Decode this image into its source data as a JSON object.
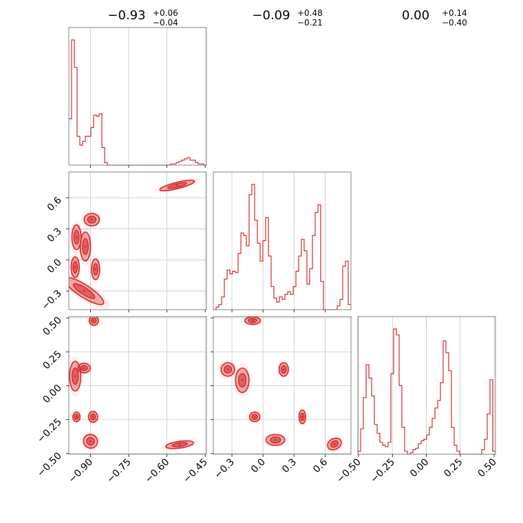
{
  "figure": {
    "type": "corner-plot",
    "color": "#d62728",
    "grid": true
  },
  "params": [
    {
      "index": 0,
      "title_value": "−0.93",
      "title_plus": "+0.06",
      "title_minus": "−0.04"
    },
    {
      "index": 1,
      "title_value": "−0.09",
      "title_plus": "+0.48",
      "title_minus": "−0.21"
    },
    {
      "index": 2,
      "title_value": "0.00",
      "title_plus": "+0.14",
      "title_minus": "−0.40"
    }
  ],
  "chart_data": [
    {
      "type": "histogram",
      "panel": "hist-p0",
      "xlim": [
        -0.985,
        -0.445
      ],
      "xticks": [
        -0.9,
        -0.75,
        -0.6,
        -0.45
      ],
      "x_tick_labels": [
        "−0.90",
        "−0.75",
        "−0.60",
        "−0.45"
      ],
      "show_tick_labels": false,
      "bin_edges_range": [
        -0.985,
        -0.445
      ],
      "bins": 50,
      "values": [
        0.37,
        1.0,
        0.78,
        0.23,
        0.16,
        0.19,
        0.23,
        0.23,
        0.3,
        0.4,
        0.39,
        0.41,
        0.14,
        0.02,
        0.0,
        0.0,
        0.0,
        0.0,
        0.0,
        0.0,
        0.0,
        0.0,
        0.0,
        0.0,
        0.0,
        0.0,
        0.0,
        0.0,
        0.0,
        0.0,
        0.0,
        0.0,
        0.0,
        0.0,
        0.0,
        0.0,
        0.0,
        0.01,
        0.01,
        0.02,
        0.03,
        0.04,
        0.05,
        0.06,
        0.04,
        0.04,
        0.02,
        0.01,
        0.01,
        0.0
      ]
    },
    {
      "type": "histogram",
      "panel": "hist-p1",
      "xlim": [
        -0.48,
        0.85
      ],
      "xticks": [
        -0.3,
        0.0,
        0.3,
        0.6
      ],
      "x_tick_labels": [
        "−0.3",
        "0.0",
        "0.3",
        "0.6"
      ],
      "show_tick_labels": false,
      "bin_edges_range": [
        -0.48,
        0.85
      ],
      "bins": 50,
      "values": [
        0.0,
        0.02,
        0.04,
        0.1,
        0.24,
        0.31,
        0.28,
        0.3,
        0.29,
        0.44,
        0.6,
        0.58,
        0.5,
        0.9,
        0.98,
        0.7,
        0.52,
        0.38,
        0.54,
        0.72,
        0.42,
        0.18,
        0.09,
        0.06,
        0.1,
        0.08,
        0.12,
        0.14,
        0.12,
        0.18,
        0.3,
        0.42,
        0.55,
        0.46,
        0.2,
        0.32,
        0.58,
        0.76,
        0.82,
        0.22,
        0.0,
        0.0,
        0.0,
        0.0,
        0.0,
        0.03,
        0.08,
        0.34,
        0.38,
        0.04
      ]
    },
    {
      "type": "histogram",
      "panel": "hist-p2",
      "xlim": [
        -0.505,
        0.51
      ],
      "xticks": [
        -0.5,
        -0.25,
        0.0,
        0.25,
        0.5
      ],
      "x_tick_labels": [
        "−0.50",
        "−0.25",
        "0.00",
        "0.25",
        "0.50"
      ],
      "show_tick_labels": true,
      "bin_edges_range": [
        -0.505,
        0.51
      ],
      "bins": 50,
      "values": [
        0.02,
        0.17,
        0.38,
        0.6,
        0.51,
        0.39,
        0.2,
        0.14,
        0.08,
        0.06,
        0.05,
        0.08,
        0.54,
        0.84,
        0.8,
        0.46,
        0.18,
        0.02,
        0.0,
        0.01,
        0.03,
        0.04,
        0.07,
        0.09,
        0.1,
        0.13,
        0.18,
        0.24,
        0.31,
        0.36,
        0.48,
        0.76,
        0.68,
        0.56,
        0.18,
        0.06,
        0.02,
        0.0,
        0.0,
        0.0,
        0.0,
        0.0,
        0.0,
        0.0,
        0.0,
        0.03,
        0.1,
        0.27,
        0.5,
        0.02
      ]
    },
    {
      "type": "contour-2d",
      "panel": "p1-vs-p0",
      "x_param": 0,
      "y_param": 1,
      "xlim": [
        -0.985,
        -0.445
      ],
      "ylim": [
        -0.48,
        0.85
      ],
      "xticks": [
        -0.9,
        -0.75,
        -0.6,
        -0.45
      ],
      "yticks": [
        -0.3,
        0.0,
        0.3,
        0.6
      ],
      "y_tick_labels": [
        "−0.3",
        "0.0",
        "0.3",
        "0.6"
      ],
      "blobs": [
        {
          "x": -0.955,
          "y": 0.22,
          "w": 0.018,
          "h": 0.12
        },
        {
          "x": -0.96,
          "y": -0.07,
          "w": 0.016,
          "h": 0.1
        },
        {
          "x": -0.92,
          "y": 0.13,
          "w": 0.02,
          "h": 0.14
        },
        {
          "x": -0.895,
          "y": 0.39,
          "w": 0.03,
          "h": 0.06
        },
        {
          "x": -0.88,
          "y": -0.09,
          "w": 0.016,
          "h": 0.1
        },
        {
          "x": -0.925,
          "y": -0.3,
          "w": 0.09,
          "h": 0.06,
          "rot": 33
        },
        {
          "x": -0.56,
          "y": 0.72,
          "w": 0.07,
          "h": 0.03,
          "rot": -14
        }
      ]
    },
    {
      "type": "contour-2d",
      "panel": "p2-vs-p0",
      "x_param": 0,
      "y_param": 2,
      "xlim": [
        -0.985,
        -0.445
      ],
      "ylim": [
        -0.505,
        0.51
      ],
      "xticks": [
        -0.9,
        -0.75,
        -0.6,
        -0.45
      ],
      "x_tick_labels": [
        "−0.90",
        "−0.75",
        "−0.60",
        "−0.45"
      ],
      "yticks": [
        -0.5,
        -0.25,
        0.0,
        0.25,
        0.5
      ],
      "y_tick_labels": [
        "−0.50",
        "−0.25",
        "0.00",
        "0.25",
        "0.50"
      ],
      "blobs": [
        {
          "x": -0.887,
          "y": 0.48,
          "w": 0.018,
          "h": 0.035
        },
        {
          "x": -0.96,
          "y": 0.07,
          "w": 0.022,
          "h": 0.11
        },
        {
          "x": -0.925,
          "y": 0.13,
          "w": 0.024,
          "h": 0.035
        },
        {
          "x": -0.955,
          "y": -0.23,
          "w": 0.014,
          "h": 0.035
        },
        {
          "x": -0.89,
          "y": -0.23,
          "w": 0.018,
          "h": 0.04
        },
        {
          "x": -0.9,
          "y": -0.41,
          "w": 0.028,
          "h": 0.05,
          "rot": 30
        },
        {
          "x": -0.55,
          "y": -0.435,
          "w": 0.055,
          "h": 0.025,
          "rot": -8
        }
      ]
    },
    {
      "type": "contour-2d",
      "panel": "p2-vs-p1",
      "x_param": 1,
      "y_param": 2,
      "xlim": [
        -0.48,
        0.85
      ],
      "ylim": [
        -0.505,
        0.51
      ],
      "xticks": [
        -0.3,
        0.0,
        0.3,
        0.6
      ],
      "x_tick_labels": [
        "−0.3",
        "0.0",
        "0.3",
        "0.6"
      ],
      "yticks": [
        -0.5,
        -0.25,
        0.0,
        0.25,
        0.5
      ],
      "blobs": [
        {
          "x": -0.1,
          "y": 0.48,
          "w": 0.075,
          "h": 0.028
        },
        {
          "x": -0.34,
          "y": 0.12,
          "w": 0.065,
          "h": 0.05
        },
        {
          "x": -0.2,
          "y": 0.04,
          "w": 0.065,
          "h": 0.09
        },
        {
          "x": 0.2,
          "y": 0.12,
          "w": 0.045,
          "h": 0.05
        },
        {
          "x": -0.08,
          "y": -0.23,
          "w": 0.05,
          "h": 0.035
        },
        {
          "x": 0.38,
          "y": -0.23,
          "w": 0.032,
          "h": 0.05
        },
        {
          "x": 0.12,
          "y": -0.4,
          "w": 0.09,
          "h": 0.04
        },
        {
          "x": 0.69,
          "y": -0.43,
          "w": 0.07,
          "h": 0.04,
          "rot": -28
        }
      ]
    }
  ]
}
